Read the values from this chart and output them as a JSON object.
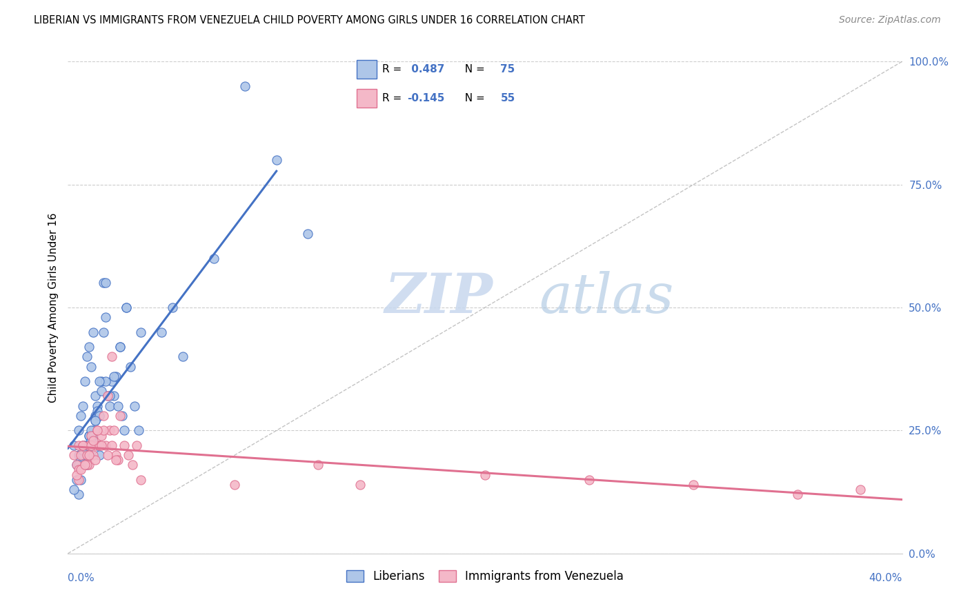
{
  "title": "LIBERIAN VS IMMIGRANTS FROM VENEZUELA CHILD POVERTY AMONG GIRLS UNDER 16 CORRELATION CHART",
  "source": "Source: ZipAtlas.com",
  "ylabel": "Child Poverty Among Girls Under 16",
  "xlim": [
    0.0,
    40.0
  ],
  "ylim": [
    0.0,
    100.0
  ],
  "ytick_values": [
    0,
    25,
    50,
    75,
    100
  ],
  "ytick_labels": [
    "0%",
    "25.0%",
    "50.0%",
    "75.0%",
    "100.0%"
  ],
  "blue_R": 0.487,
  "blue_N": 75,
  "pink_R": -0.145,
  "pink_N": 55,
  "blue_color": "#aec6e8",
  "blue_line_color": "#4472c4",
  "pink_color": "#f4b8c8",
  "pink_line_color": "#e07090",
  "legend_label_blue": "Liberians",
  "legend_label_pink": "Immigrants from Venezuela",
  "watermark_zip": "ZIP",
  "watermark_atlas": "atlas",
  "blue_scatter_x": [
    0.3,
    0.4,
    0.5,
    0.5,
    0.6,
    0.6,
    0.7,
    0.7,
    0.8,
    0.8,
    0.9,
    0.9,
    1.0,
    1.0,
    1.1,
    1.1,
    1.2,
    1.2,
    1.3,
    1.3,
    1.4,
    1.4,
    1.5,
    1.5,
    1.6,
    1.7,
    1.8,
    1.9,
    2.0,
    2.1,
    2.2,
    2.3,
    2.4,
    2.5,
    2.6,
    2.7,
    2.8,
    3.0,
    3.2,
    3.4,
    0.4,
    0.5,
    0.6,
    0.7,
    0.8,
    0.9,
    1.0,
    1.1,
    1.2,
    1.3,
    1.4,
    1.5,
    1.6,
    1.7,
    1.8,
    2.0,
    2.2,
    2.5,
    2.8,
    3.5,
    4.5,
    5.0,
    5.5,
    7.0,
    8.5,
    10.0,
    11.5,
    0.3,
    0.5,
    0.7,
    0.9,
    1.1,
    1.3,
    1.5,
    1.8
  ],
  "blue_scatter_y": [
    22,
    18,
    25,
    20,
    28,
    15,
    30,
    22,
    35,
    20,
    40,
    18,
    42,
    24,
    38,
    20,
    45,
    25,
    32,
    28,
    30,
    22,
    28,
    20,
    35,
    55,
    48,
    32,
    30,
    35,
    32,
    36,
    30,
    42,
    28,
    25,
    50,
    38,
    30,
    25,
    15,
    12,
    19,
    20,
    22,
    22,
    24,
    25,
    24,
    27,
    29,
    28,
    33,
    45,
    35,
    32,
    36,
    42,
    50,
    45,
    45,
    50,
    40,
    60,
    95,
    80,
    65,
    13,
    18,
    21,
    22,
    23,
    27,
    35,
    55
  ],
  "pink_scatter_x": [
    0.3,
    0.4,
    0.5,
    0.5,
    0.6,
    0.7,
    0.8,
    0.9,
    1.0,
    1.0,
    1.1,
    1.2,
    1.3,
    1.4,
    1.5,
    1.6,
    1.7,
    1.8,
    1.9,
    2.0,
    2.1,
    2.2,
    2.3,
    2.4,
    2.5,
    2.7,
    2.9,
    3.1,
    3.3,
    3.5,
    0.5,
    0.7,
    0.9,
    1.1,
    1.3,
    1.5,
    1.7,
    1.9,
    2.1,
    2.3,
    0.4,
    0.6,
    0.8,
    1.0,
    1.2,
    1.4,
    1.6,
    8.0,
    12.0,
    14.0,
    20.0,
    25.0,
    30.0,
    35.0,
    38.0
  ],
  "pink_scatter_y": [
    20,
    18,
    22,
    15,
    20,
    22,
    18,
    20,
    22,
    18,
    24,
    20,
    22,
    25,
    22,
    24,
    28,
    22,
    32,
    25,
    40,
    25,
    20,
    19,
    28,
    22,
    20,
    18,
    22,
    15,
    17,
    22,
    18,
    22,
    19,
    22,
    25,
    20,
    22,
    19,
    16,
    17,
    18,
    20,
    23,
    25,
    22,
    14,
    18,
    14,
    16,
    15,
    14,
    12,
    13
  ]
}
